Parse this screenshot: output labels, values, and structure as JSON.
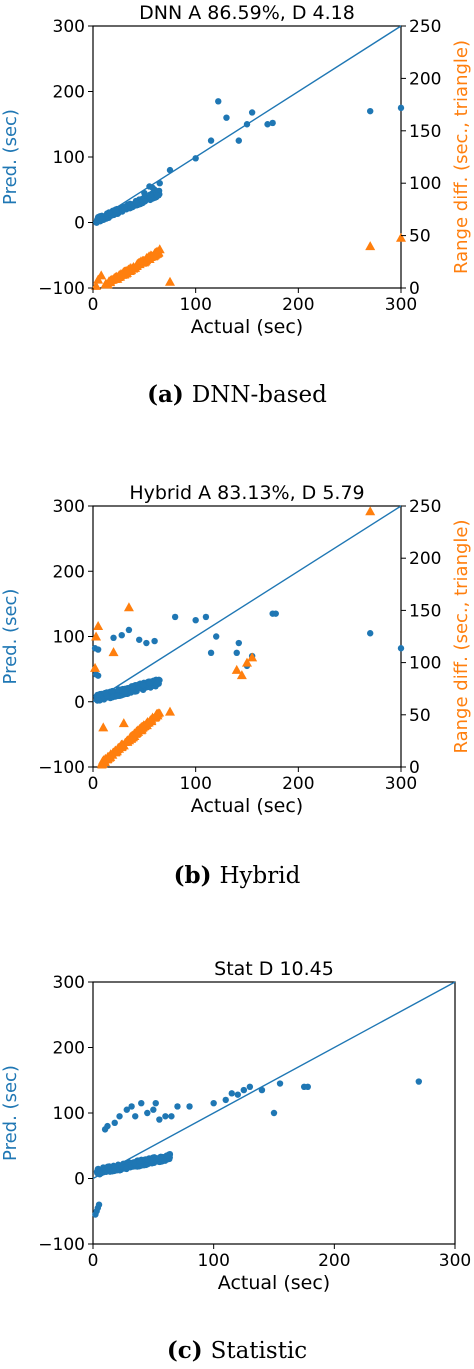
{
  "colors": {
    "pred": "#1f77b4",
    "range": "#ff7f0e",
    "axis": "#000000"
  },
  "chart_data": [
    {
      "type": "scatter",
      "title": "DNN A 86.59%, D 4.18",
      "xlabel": "Actual (sec)",
      "ylabel": "Pred. (sec)",
      "ylabel2": "Range diff. (sec., triangle)",
      "caption_tag": "(a)",
      "caption_text": "DNN-based",
      "xlim": [
        0,
        300
      ],
      "ylim": [
        -100,
        300
      ],
      "y2lim": [
        0,
        250
      ],
      "xticks": [
        "0",
        "100",
        "200",
        "300"
      ],
      "yticks": [
        "−100",
        "0",
        "100",
        "200",
        "300"
      ],
      "y2ticks": [
        "0",
        "50",
        "100",
        "150",
        "200",
        "250"
      ],
      "diagonal": [
        [
          0,
          0
        ],
        [
          300,
          300
        ]
      ],
      "series": [
        {
          "marker": "circle",
          "color_key": "pred",
          "points": [
            [
              100,
              98
            ],
            [
              115,
              125
            ],
            [
              122,
              185
            ],
            [
              130,
              160
            ],
            [
              142,
              125
            ],
            [
              150,
              150
            ],
            [
              155,
              168
            ],
            [
              170,
              150
            ],
            [
              175,
              152
            ],
            [
              270,
              170
            ],
            [
              300,
              175
            ],
            [
              75,
              80
            ],
            [
              60,
              50
            ],
            [
              55,
              55
            ],
            [
              65,
              60
            ],
            [
              50,
              45
            ],
            [
              58,
              53
            ]
          ]
        },
        {
          "marker": "triangle",
          "axis": "y2",
          "color_key": "range",
          "points": [
            [
              270,
              40
            ],
            [
              300,
              48
            ],
            [
              75,
              6
            ],
            [
              65,
              37
            ],
            [
              3,
              2
            ],
            [
              5,
              8
            ],
            [
              8,
              12
            ]
          ]
        }
      ],
      "clusters": [
        {
          "kind": "band",
          "color_key": "pred",
          "axis": "y",
          "x0": 3,
          "x1": 65,
          "y0": 3,
          "y1": 45,
          "spread": 18,
          "n": 260
        },
        {
          "kind": "band",
          "color_key": "range",
          "axis": "y2",
          "x0": 12,
          "x1": 65,
          "y0": 3,
          "y1": 35,
          "spread": 7,
          "n": 150
        }
      ]
    },
    {
      "type": "scatter",
      "title": "Hybrid A 83.13%, D 5.79",
      "xlabel": "Actual (sec)",
      "ylabel": "Pred. (sec)",
      "ylabel2": "Range diff. (sec., triangle)",
      "caption_tag": "(b)",
      "caption_text": "Hybrid",
      "xlim": [
        0,
        300
      ],
      "ylim": [
        -100,
        300
      ],
      "y2lim": [
        0,
        250
      ],
      "xticks": [
        "0",
        "100",
        "200",
        "300"
      ],
      "yticks": [
        "−100",
        "0",
        "100",
        "200",
        "300"
      ],
      "y2ticks": [
        "0",
        "50",
        "100",
        "150",
        "200",
        "250"
      ],
      "diagonal": [
        [
          0,
          0
        ],
        [
          300,
          300
        ]
      ],
      "series": [
        {
          "marker": "circle",
          "color_key": "pred",
          "points": [
            [
              2,
              82
            ],
            [
              5,
              80
            ],
            [
              35,
              110
            ],
            [
              45,
              95
            ],
            [
              52,
              90
            ],
            [
              60,
              93
            ],
            [
              80,
              130
            ],
            [
              100,
              125
            ],
            [
              110,
              130
            ],
            [
              115,
              75
            ],
            [
              120,
              100
            ],
            [
              140,
              75
            ],
            [
              142,
              90
            ],
            [
              150,
              55
            ],
            [
              155,
              70
            ],
            [
              175,
              135
            ],
            [
              178,
              135
            ],
            [
              270,
              105
            ],
            [
              300,
              82
            ],
            [
              20,
              98
            ],
            [
              28,
              102
            ],
            [
              3,
              42
            ],
            [
              5,
              40
            ]
          ]
        },
        {
          "marker": "triangle",
          "axis": "y2",
          "color_key": "range",
          "points": [
            [
              3,
              125
            ],
            [
              5,
              135
            ],
            [
              20,
              110
            ],
            [
              35,
              153
            ],
            [
              10,
              38
            ],
            [
              140,
              93
            ],
            [
              145,
              88
            ],
            [
              150,
              100
            ],
            [
              155,
              105
            ],
            [
              75,
              53
            ],
            [
              270,
              245
            ],
            [
              30,
              42
            ],
            [
              2,
              95
            ]
          ]
        }
      ],
      "clusters": [
        {
          "kind": "band",
          "color_key": "pred",
          "axis": "y",
          "x0": 3,
          "x1": 65,
          "y0": 5,
          "y1": 30,
          "spread": 22,
          "n": 260
        },
        {
          "kind": "band",
          "color_key": "range",
          "axis": "y2",
          "x0": 8,
          "x1": 65,
          "y0": 3,
          "y1": 52,
          "spread": 7,
          "n": 160
        }
      ]
    },
    {
      "type": "scatter",
      "title": "Stat D 10.45",
      "xlabel": "Actual (sec)",
      "ylabel": "Pred. (sec)",
      "caption_tag": "(c)",
      "caption_text": "Statistic",
      "xlim": [
        0,
        300
      ],
      "ylim": [
        -100,
        300
      ],
      "xticks": [
        "0",
        "100",
        "200",
        "300"
      ],
      "yticks": [
        "−100",
        "0",
        "100",
        "200",
        "300"
      ],
      "diagonal": [
        [
          0,
          0
        ],
        [
          300,
          300
        ]
      ],
      "series": [
        {
          "marker": "circle",
          "color_key": "pred",
          "points": [
            [
              2,
              -55
            ],
            [
              3,
              -50
            ],
            [
              5,
              -40
            ],
            [
              4,
              -45
            ],
            [
              10,
              75
            ],
            [
              12,
              80
            ],
            [
              18,
              85
            ],
            [
              22,
              95
            ],
            [
              28,
              105
            ],
            [
              32,
              110
            ],
            [
              35,
              95
            ],
            [
              40,
              115
            ],
            [
              45,
              100
            ],
            [
              50,
              105
            ],
            [
              52,
              115
            ],
            [
              55,
              90
            ],
            [
              60,
              95
            ],
            [
              65,
              95
            ],
            [
              70,
              110
            ],
            [
              80,
              110
            ],
            [
              100,
              115
            ],
            [
              110,
              120
            ],
            [
              115,
              130
            ],
            [
              120,
              128
            ],
            [
              125,
              135
            ],
            [
              130,
              140
            ],
            [
              140,
              135
            ],
            [
              150,
              100
            ],
            [
              155,
              145
            ],
            [
              175,
              140
            ],
            [
              178,
              140
            ],
            [
              270,
              148
            ]
          ]
        }
      ],
      "clusters": [
        {
          "kind": "band",
          "color_key": "pred",
          "axis": "y",
          "x0": 3,
          "x1": 65,
          "y0": 10,
          "y1": 33,
          "spread": 20,
          "n": 280
        }
      ]
    }
  ]
}
